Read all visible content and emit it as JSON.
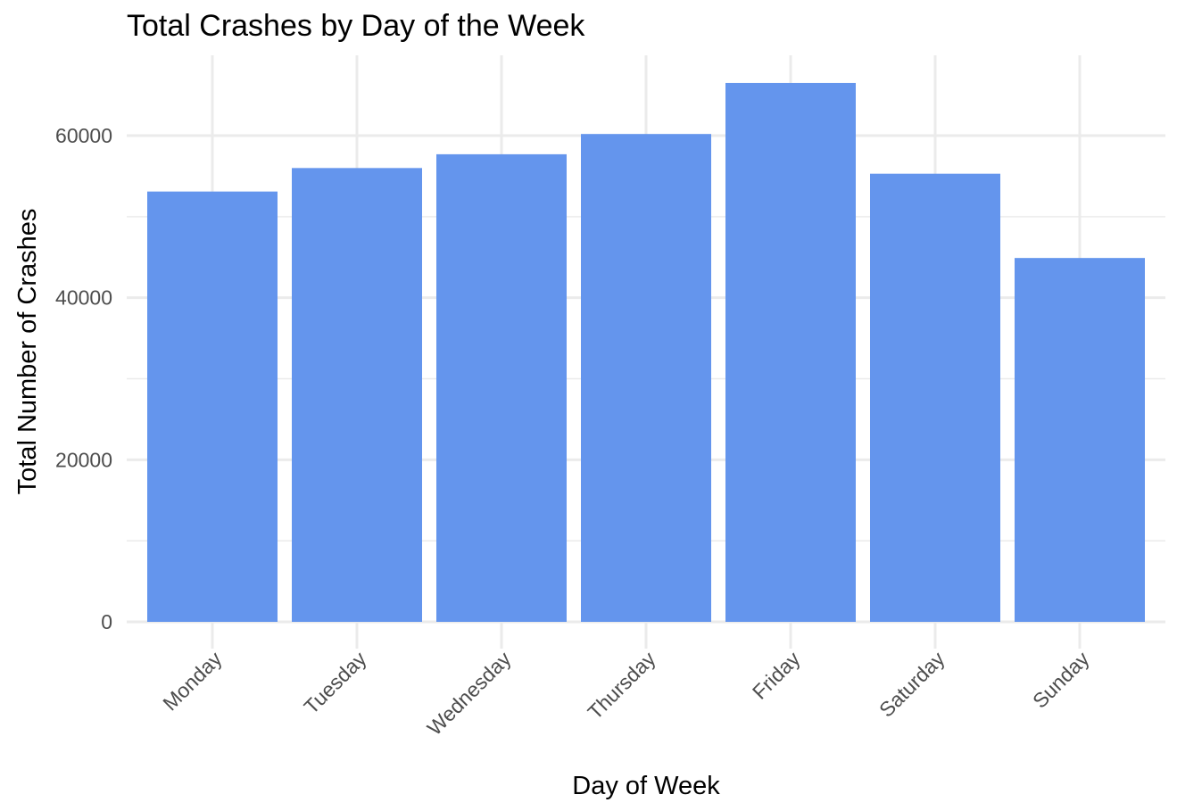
{
  "chart_data": {
    "type": "bar",
    "title": "Total Crashes by Day of the Week",
    "xlabel": "Day of Week",
    "ylabel": "Total Number of Crashes",
    "categories": [
      "Monday",
      "Tuesday",
      "Wednesday",
      "Thursday",
      "Friday",
      "Saturday",
      "Sunday"
    ],
    "values": [
      53100,
      56000,
      57700,
      60200,
      66500,
      55300,
      44900
    ],
    "ylim": [
      0,
      70000
    ],
    "yticks": [
      0,
      20000,
      40000,
      60000
    ],
    "ytick_labels": [
      "0",
      "20000",
      "40000",
      "60000"
    ],
    "grid": true,
    "bar_color": "#6495ED",
    "legend": "none"
  }
}
